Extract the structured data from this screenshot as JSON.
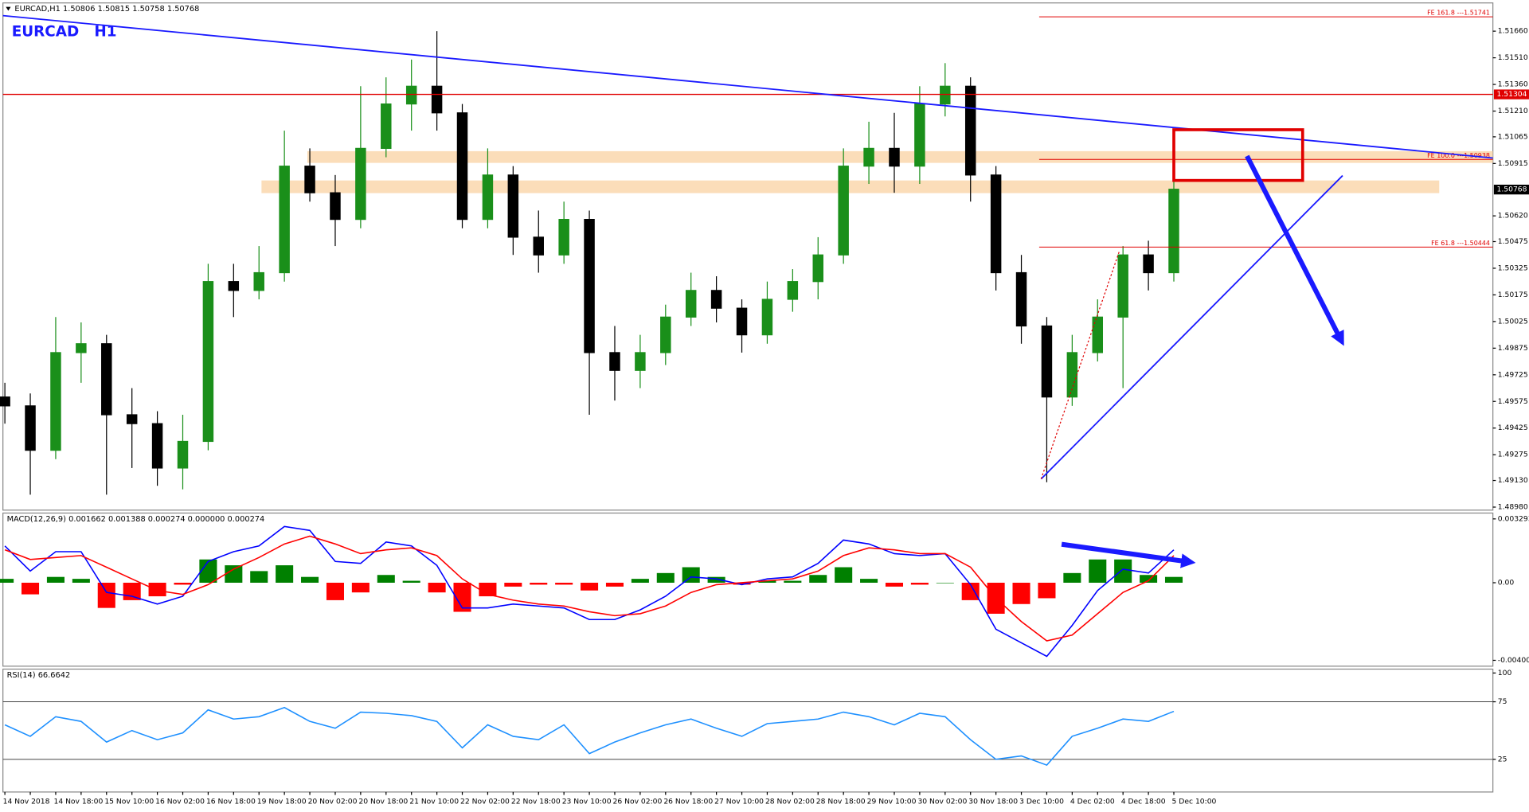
{
  "header": "EURCAD,H1  1.50806 1.50815 1.50758 1.50768",
  "symbol_label": "EURCAD   H1",
  "chart_data": [
    {
      "type": "candlestick",
      "categories": [
        "14 Nov 2018",
        null,
        "14 Nov 18:00",
        null,
        "15 Nov 10:00",
        null,
        "16 Nov 02:00",
        null,
        "16 Nov 18:00",
        null,
        "19 Nov 18:00",
        null,
        "20 Nov 02:00",
        null,
        "20 Nov 18:00",
        null,
        "21 Nov 10:00",
        null,
        "22 Nov 02:00",
        null,
        "22 Nov 18:00",
        null,
        "23 Nov 10:00",
        null,
        "26 Nov 02:00",
        null,
        "26 Nov 18:00",
        null,
        "27 Nov 10:00",
        null,
        "28 Nov 02:00",
        null,
        "28 Nov 18:00",
        null,
        "29 Nov 10:00",
        null,
        "30 Nov 02:00",
        null,
        "30 Nov 18:00",
        null,
        "3 Dec 10:00",
        null,
        "4 Dec 02:00",
        null,
        "4 Dec 18:00",
        null,
        "5 Dec 10:00"
      ],
      "open": [
        1.496,
        1.4955,
        1.493,
        1.4985,
        1.499,
        1.495,
        1.4945,
        1.492,
        1.4935,
        1.5025,
        1.502,
        1.503,
        1.509,
        1.5075,
        1.506,
        1.51,
        1.5125,
        1.5135,
        1.512,
        1.506,
        1.5085,
        1.505,
        1.504,
        1.506,
        1.4985,
        1.4975,
        1.4985,
        1.5005,
        1.502,
        1.501,
        1.4995,
        1.5015,
        1.5025,
        1.504,
        1.509,
        1.51,
        1.509,
        1.5125,
        1.5135,
        1.5085,
        1.503,
        1.5,
        1.496,
        1.4985,
        1.5005,
        1.504,
        1.503
      ],
      "high": [
        1.4968,
        1.4962,
        1.5005,
        1.5002,
        1.4995,
        1.4965,
        1.4952,
        1.495,
        1.5035,
        1.5035,
        1.5045,
        1.511,
        1.51,
        1.5085,
        1.5135,
        1.514,
        1.515,
        1.5166,
        1.5125,
        1.51,
        1.509,
        1.5065,
        1.507,
        1.5065,
        1.5,
        1.4995,
        1.5012,
        1.503,
        1.5028,
        1.5015,
        1.5025,
        1.5032,
        1.505,
        1.51,
        1.5115,
        1.512,
        1.5135,
        1.5148,
        1.514,
        1.509,
        1.504,
        1.5005,
        1.4995,
        1.5015,
        1.5045,
        1.5048,
        1.5082
      ],
      "low": [
        1.4945,
        1.4905,
        1.4925,
        1.4968,
        1.4905,
        1.492,
        1.491,
        1.4908,
        1.493,
        1.5005,
        1.5015,
        1.5025,
        1.507,
        1.5045,
        1.5055,
        1.5095,
        1.511,
        1.511,
        1.5055,
        1.5055,
        1.504,
        1.503,
        1.5035,
        1.495,
        1.4958,
        1.4965,
        1.4978,
        1.5,
        1.5002,
        1.4985,
        1.499,
        1.5008,
        1.5015,
        1.5035,
        1.508,
        1.5075,
        1.508,
        1.5118,
        1.507,
        1.502,
        1.499,
        1.4912,
        1.4955,
        1.498,
        1.4965,
        1.502,
        1.5025
      ],
      "close": [
        1.4955,
        1.493,
        1.4985,
        1.499,
        1.495,
        1.4945,
        1.492,
        1.4935,
        1.5025,
        1.502,
        1.503,
        1.509,
        1.5075,
        1.506,
        1.51,
        1.5125,
        1.5135,
        1.512,
        1.506,
        1.5085,
        1.505,
        1.504,
        1.506,
        1.4985,
        1.4975,
        1.4985,
        1.5005,
        1.502,
        1.501,
        1.4995,
        1.5015,
        1.5025,
        1.504,
        1.509,
        1.51,
        1.509,
        1.5125,
        1.5135,
        1.5085,
        1.503,
        1.5,
        1.496,
        1.4985,
        1.5005,
        1.504,
        1.503,
        1.5077
      ],
      "up_color": "#1a8f1a",
      "down_color": "#000000",
      "ylim": [
        1.48963,
        1.51819
      ],
      "yticks": [
        {
          "value": 1.5166,
          "label": "1.51660"
        },
        {
          "value": 1.5151,
          "label": "1.51510"
        },
        {
          "value": 1.5136,
          "label": "1.51360"
        },
        {
          "value": 1.5121,
          "label": "1.51210"
        },
        1.51065,
        1.50915,
        {
          "value": 1.5062,
          "label": "1.50620"
        },
        1.50475,
        1.50325,
        1.50175,
        1.50025,
        1.49875,
        1.49725,
        1.49575,
        1.49425,
        1.49275,
        {
          "value": 1.4913,
          "label": "1.49130"
        },
        {
          "value": 1.4898,
          "label": "1.48980"
        }
      ],
      "levels": [
        {
          "value": 1.51741,
          "label": "FE 161.8 ---1.51741"
        },
        {
          "value": 1.50938,
          "label": "FE 100.0 ---1.50938"
        },
        {
          "value": 1.50444,
          "label": "FE 61.8 ---1.50444"
        }
      ],
      "level_color": "#e00000",
      "price_line": {
        "value": 1.51304,
        "label": "1.51304",
        "color": "#e00000"
      },
      "current_price": {
        "value": 1.50768,
        "label": "1.50768"
      }
    },
    {
      "type": "macd",
      "title": "MACD(12,26,9) 0.001662 0.001388 0.000274 0.000000 0.000274",
      "ylim": [
        -0.004004,
        0.003293
      ],
      "yticks": [
        0.003293,
        {
          "value": 0,
          "label": "0.00"
        },
        -0.004004
      ],
      "histogram": {
        "up_color": "#008000",
        "down_color": "#ff0000",
        "values": [
          0.0002,
          -0.0006,
          0.0003,
          0.0002,
          -0.0013,
          -0.0009,
          -0.0007,
          -0.0001,
          0.0012,
          0.0009,
          0.0006,
          0.0009,
          0.0003,
          -0.0009,
          -0.0005,
          0.0004,
          0.0001,
          -0.0005,
          -0.0015,
          -0.0007,
          -0.0002,
          -0.0001,
          -0.0001,
          -0.0004,
          -0.0002,
          0.0002,
          0.0005,
          0.0008,
          0.0003,
          -0.0001,
          0.0001,
          0.0001,
          0.0004,
          0.0008,
          0.0002,
          -0.0002,
          -0.0001,
          0.0,
          -0.0009,
          -0.0016,
          -0.0011,
          -0.0008,
          0.0005,
          0.0012,
          0.0012,
          0.0004,
          0.0003
        ]
      },
      "series": [
        {
          "color": "#0000ff",
          "values": [
            0.0019,
            0.0006,
            0.0016,
            0.0016,
            -0.0005,
            -0.0007,
            -0.0011,
            -0.0007,
            0.0011,
            0.0016,
            0.0019,
            0.0029,
            0.0027,
            0.0011,
            0.001,
            0.0021,
            0.0019,
            0.0009,
            -0.0013,
            -0.0013,
            -0.0011,
            -0.0012,
            -0.0013,
            -0.0019,
            -0.0019,
            -0.0014,
            -0.0007,
            0.0003,
            0.0002,
            -0.0001,
            0.0002,
            0.0003,
            0.001,
            0.0022,
            0.002,
            0.0015,
            0.0014,
            0.0015,
            -0.0001,
            -0.0024,
            -0.0031,
            -0.0038,
            -0.0022,
            -0.0004,
            0.0007,
            0.0005,
            0.0017
          ]
        },
        {
          "color": "#ff0000",
          "values": [
            0.0017,
            0.0012,
            0.0013,
            0.0014,
            0.0008,
            0.0002,
            -0.0004,
            -0.0006,
            -0.0001,
            0.0007,
            0.0013,
            0.002,
            0.0024,
            0.002,
            0.0015,
            0.0017,
            0.0018,
            0.0014,
            0.0002,
            -0.0006,
            -0.0009,
            -0.0011,
            -0.0012,
            -0.0015,
            -0.0017,
            -0.0016,
            -0.0012,
            -0.0005,
            -0.0001,
            0.0,
            0.0001,
            0.0002,
            0.0006,
            0.0014,
            0.0018,
            0.0017,
            0.0015,
            0.0015,
            0.0008,
            -0.0008,
            -0.002,
            -0.003,
            -0.0027,
            -0.0016,
            -0.0005,
            0.0001,
            0.0014
          ]
        }
      ]
    },
    {
      "type": "rsi",
      "title": "RSI(14) 66.6642",
      "ylim": [
        0,
        100
      ],
      "yticks": [
        100,
        75,
        25
      ],
      "levels": [
        75,
        25
      ],
      "series": [
        {
          "color": "#1e90ff",
          "values": [
            55,
            45,
            62,
            58,
            40,
            50,
            42,
            48,
            68,
            60,
            62,
            70,
            58,
            52,
            66,
            65,
            63,
            58,
            35,
            55,
            45,
            42,
            55,
            30,
            40,
            48,
            55,
            60,
            52,
            45,
            56,
            58,
            60,
            66,
            62,
            55,
            65,
            62,
            42,
            25,
            28,
            20,
            45,
            52,
            60,
            58,
            66.6642
          ]
        }
      ]
    }
  ]
}
